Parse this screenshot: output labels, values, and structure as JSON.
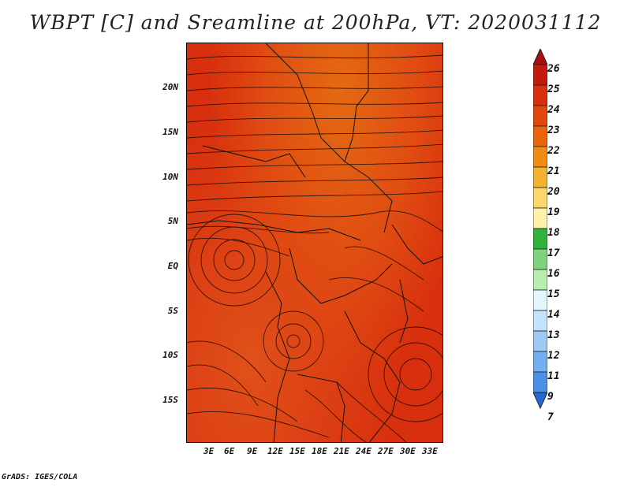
{
  "title": "WBPT [C] and Sreamline at 200hPa, VT: 2020031112",
  "footer": "GrADS: IGES/COLA",
  "y_ticks": [
    "20N",
    "15N",
    "10N",
    "5N",
    "EQ",
    "5S",
    "10S",
    "15S"
  ],
  "x_ticks": [
    "3E",
    "6E",
    "9E",
    "12E",
    "15E",
    "18E",
    "21E",
    "24E",
    "27E",
    "30E",
    "33E"
  ],
  "colorbar": {
    "labels": [
      "26",
      "25",
      "24",
      "23",
      "22",
      "21",
      "20",
      "19",
      "18",
      "17",
      "16",
      "15",
      "14",
      "13",
      "12",
      "11",
      "9",
      "7"
    ],
    "colors": [
      "#a50f0f",
      "#c41a0e",
      "#d8300e",
      "#e2480e",
      "#ea640e",
      "#f08c14",
      "#f4b232",
      "#fbd66b",
      "#fdf0a8",
      "#2fb33a",
      "#7fd37c",
      "#b7eeb0",
      "#e2f6fc",
      "#c3e3fb",
      "#9ccaf4",
      "#72aff0",
      "#4a90e6",
      "#2468d8"
    ]
  }
}
